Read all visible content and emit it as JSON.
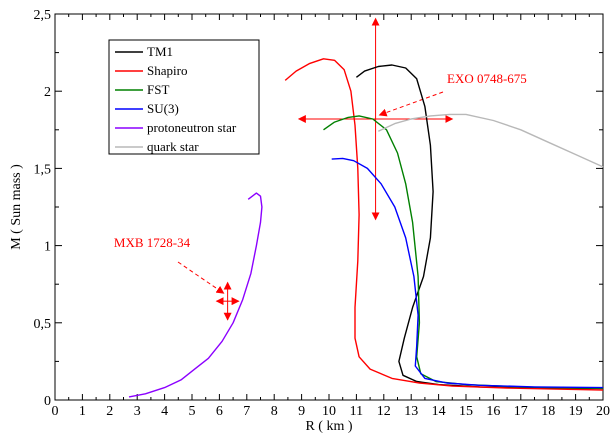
{
  "chart_data": {
    "type": "line",
    "xlabel": "R ( km )",
    "ylabel": "M  ( Sun mass )",
    "xlim": [
      0,
      20
    ],
    "ylim": [
      0,
      2.5
    ],
    "x_ticks": [
      "0",
      "1",
      "2",
      "3",
      "4",
      "5",
      "6",
      "7",
      "8",
      "9",
      "10",
      "11",
      "12",
      "13",
      "14",
      "15",
      "16",
      "17",
      "18",
      "19",
      "20"
    ],
    "y_ticks": [
      "0",
      "0,5",
      "1",
      "1,5",
      "2",
      "2,5"
    ],
    "grid": false,
    "legend_placement": "upper-left",
    "series": [
      {
        "name": "TM1",
        "color": "#000000",
        "points": [
          [
            11.0,
            2.09
          ],
          [
            11.3,
            2.13
          ],
          [
            11.8,
            2.16
          ],
          [
            12.3,
            2.17
          ],
          [
            12.8,
            2.15
          ],
          [
            13.2,
            2.08
          ],
          [
            13.5,
            1.9
          ],
          [
            13.7,
            1.65
          ],
          [
            13.8,
            1.35
          ],
          [
            13.7,
            1.05
          ],
          [
            13.45,
            0.8
          ],
          [
            13.05,
            0.6
          ],
          [
            12.75,
            0.4
          ],
          [
            12.55,
            0.25
          ],
          [
            12.7,
            0.16
          ],
          [
            13.2,
            0.12
          ],
          [
            14.0,
            0.1
          ],
          [
            15.5,
            0.085
          ],
          [
            17.5,
            0.078
          ],
          [
            20.0,
            0.075
          ]
        ]
      },
      {
        "name": "Shapiro",
        "color": "#ff0000",
        "points": [
          [
            8.4,
            2.07
          ],
          [
            8.8,
            2.13
          ],
          [
            9.3,
            2.18
          ],
          [
            9.8,
            2.21
          ],
          [
            10.2,
            2.2
          ],
          [
            10.55,
            2.14
          ],
          [
            10.8,
            2.0
          ],
          [
            10.95,
            1.78
          ],
          [
            11.05,
            1.5
          ],
          [
            11.1,
            1.2
          ],
          [
            11.05,
            0.9
          ],
          [
            10.95,
            0.6
          ],
          [
            10.95,
            0.4
          ],
          [
            11.1,
            0.28
          ],
          [
            11.5,
            0.2
          ],
          [
            12.3,
            0.14
          ],
          [
            13.3,
            0.11
          ],
          [
            14.5,
            0.09
          ],
          [
            16.5,
            0.078
          ],
          [
            18.5,
            0.07
          ],
          [
            20.0,
            0.065
          ]
        ]
      },
      {
        "name": "FST",
        "color": "#008000",
        "points": [
          [
            9.8,
            1.75
          ],
          [
            10.2,
            1.8
          ],
          [
            10.7,
            1.83
          ],
          [
            11.1,
            1.84
          ],
          [
            11.6,
            1.82
          ],
          [
            12.1,
            1.75
          ],
          [
            12.5,
            1.6
          ],
          [
            12.8,
            1.4
          ],
          [
            13.05,
            1.15
          ],
          [
            13.25,
            0.8
          ],
          [
            13.3,
            0.5
          ],
          [
            13.2,
            0.28
          ],
          [
            13.35,
            0.17
          ],
          [
            13.9,
            0.12
          ],
          [
            15.0,
            0.1
          ],
          [
            17.0,
            0.085
          ],
          [
            20.0,
            0.075
          ]
        ]
      },
      {
        "name": "SU(3)",
        "color": "#0000ff",
        "points": [
          [
            10.1,
            1.56
          ],
          [
            10.5,
            1.565
          ],
          [
            10.9,
            1.55
          ],
          [
            11.4,
            1.5
          ],
          [
            11.9,
            1.4
          ],
          [
            12.4,
            1.25
          ],
          [
            12.8,
            1.05
          ],
          [
            13.1,
            0.8
          ],
          [
            13.25,
            0.55
          ],
          [
            13.2,
            0.35
          ],
          [
            13.15,
            0.22
          ],
          [
            13.5,
            0.14
          ],
          [
            14.3,
            0.11
          ],
          [
            15.5,
            0.095
          ],
          [
            17.5,
            0.085
          ],
          [
            20.0,
            0.08
          ]
        ]
      },
      {
        "name": "protoneutron star",
        "color": "#8b00ff",
        "points": [
          [
            2.7,
            0.02
          ],
          [
            3.3,
            0.04
          ],
          [
            4.0,
            0.08
          ],
          [
            4.6,
            0.13
          ],
          [
            5.1,
            0.2
          ],
          [
            5.6,
            0.27
          ],
          [
            6.1,
            0.38
          ],
          [
            6.5,
            0.5
          ],
          [
            6.85,
            0.65
          ],
          [
            7.15,
            0.82
          ],
          [
            7.35,
            1.0
          ],
          [
            7.5,
            1.15
          ],
          [
            7.55,
            1.25
          ],
          [
            7.5,
            1.32
          ],
          [
            7.35,
            1.34
          ],
          [
            7.2,
            1.32
          ],
          [
            7.05,
            1.3
          ]
        ]
      },
      {
        "name": "quark star",
        "color": "#b8b8b8",
        "points": [
          [
            11.8,
            1.74
          ],
          [
            12.4,
            1.79
          ],
          [
            13.0,
            1.82
          ],
          [
            13.7,
            1.84
          ],
          [
            14.4,
            1.85
          ],
          [
            15.0,
            1.85
          ],
          [
            16.0,
            1.81
          ],
          [
            17.0,
            1.75
          ],
          [
            18.0,
            1.67
          ],
          [
            19.0,
            1.59
          ],
          [
            20.0,
            1.51
          ]
        ]
      }
    ],
    "annotations": [
      {
        "text": "MXB 1728-34",
        "color": "#ff0000",
        "point": [
          6.3,
          0.64
        ],
        "x_error": 0.4,
        "y_error": 0.12
      },
      {
        "text": "EXO 0748-675",
        "color": "#ff0000",
        "point": [
          11.7,
          1.82
        ],
        "x_error": 2.8,
        "y_error": 0.65
      }
    ]
  }
}
